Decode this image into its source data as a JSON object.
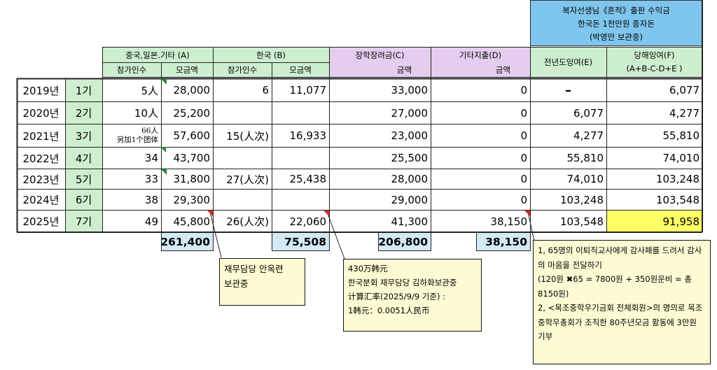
{
  "top_banner": {
    "line1": "복자선생님《흔적》출판 수익금",
    "line2": "한국돈 1천만원 종자돈",
    "line3": "(박영만 보관중)"
  },
  "headers": {
    "china_japan": "중국,일본.기타 (A)",
    "korea": "한국 (B)",
    "scholarship": "장학장려금(C)",
    "other_expense": "기타지출(D)",
    "prev_surplus": "전년도잉여(E)",
    "surplus_line1": "당해잉여(F)",
    "surplus_line2": "(A+B-C-D+E )",
    "participants": "참가인수",
    "fund_amount": "모금액",
    "amount": "금액"
  },
  "rows": [
    {
      "year": "2019년",
      "term": "1기",
      "cj_people": "5人",
      "cj_amount": "28,000",
      "k_people": "6",
      "k_amount": "11,077",
      "scholarship": "33,000",
      "other": "0",
      "prev": "–",
      "surplus": "6,077"
    },
    {
      "year": "2020년",
      "term": "2기",
      "cj_people": "10人",
      "cj_amount": "25,200",
      "k_people": "",
      "k_amount": "",
      "scholarship": "27,000",
      "other": "0",
      "prev": "6,077",
      "surplus": "4,277"
    },
    {
      "year": "2021년",
      "term": "3기",
      "cj_people": "",
      "cj_amount": "57,600",
      "k_people": "15(人次)",
      "k_amount": "16,933",
      "scholarship": "23,000",
      "other": "0",
      "prev": "4,277",
      "surplus": "55,810"
    },
    {
      "year": "2022년",
      "term": "4기",
      "cj_people": "34",
      "cj_amount": "43,700",
      "k_people": "",
      "k_amount": "",
      "scholarship": "25,500",
      "other": "0",
      "prev": "55,810",
      "surplus": "74,010"
    },
    {
      "year": "2023년",
      "term": "5기",
      "cj_people": "33",
      "cj_amount": "31,800",
      "k_people": "27(人次)",
      "k_amount": "25,438",
      "scholarship": "28,000",
      "other": "0",
      "prev": "74,010",
      "surplus": "103,248"
    },
    {
      "year": "2024년",
      "term": "6기",
      "cj_people": "38",
      "cj_amount": "29,300",
      "k_people": "",
      "k_amount": "",
      "scholarship": "29,000",
      "other": "0",
      "prev": "103,248",
      "surplus": "103,548"
    },
    {
      "year": "2025년",
      "term": "7기",
      "cj_people": "49",
      "cj_amount": "45,800",
      "k_people": "26(人次)",
      "k_amount": "22,060",
      "scholarship": "41,300",
      "other": "38,150",
      "prev": "103,548",
      "surplus": "91,958"
    }
  ],
  "row3_people_top": "66人",
  "row3_people_bottom": "另加1个团体",
  "totals": {
    "cj": "261,400",
    "korea": "75,508",
    "scholarship": "206,800",
    "other": "38,150"
  },
  "notes": {
    "a": [
      "재무담당 안옥련",
      "보관중"
    ],
    "b": [
      "430万韩元",
      "한국분회 재무담당 김하화보관중",
      "计算汇率(2025/9/9 기준) :",
      "1韩元：0.0051人民币"
    ],
    "d": [
      "1,  65명의 이퇴직교사에게 감사패를 드려서 감사의 마음을 전달하기",
      "(120원 ✖65 = 7800원 + 350원운비 = 총 8150원)",
      "2,  <목조중학우기금회 전체회원>의 명의로 목조중학우총회가 조직한 80주년모금 활동에 3만원 기부"
    ]
  },
  "colors": {
    "green_header": "#cdeecf",
    "purple_header": "#e5cdee",
    "blue_banner": "#7fc6ee",
    "total_fill": "#d3e9f6",
    "highlight_yellow": "#ffff66",
    "note_fill": "#fdfbd3"
  }
}
